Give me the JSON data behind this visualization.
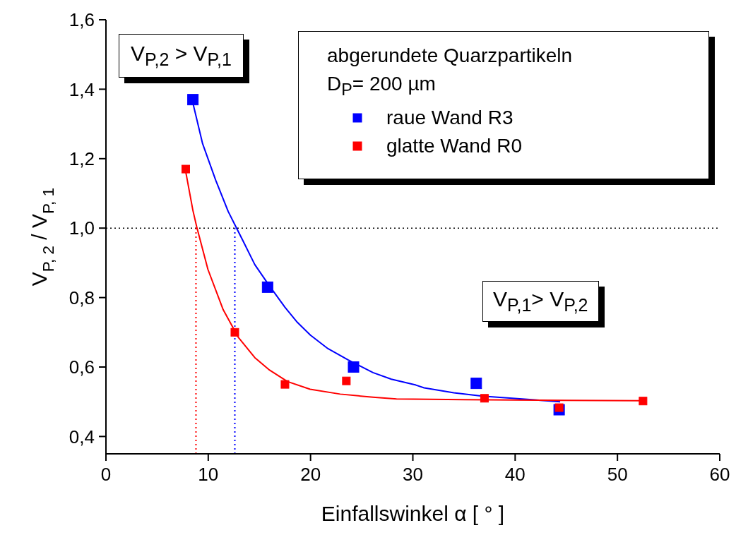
{
  "chart_data": {
    "type": "scatter",
    "xlabel": "Einfallswinkel α [ ° ]",
    "ylabel": "V$_{P, 2}$ / V$_{P, 1}$",
    "legend_title": "abgerundete Quarzpartikeln\nD$_{P}$= 200 µm",
    "legend": "top right",
    "xlim": [
      0,
      60
    ],
    "xticks": [
      0,
      10,
      20,
      30,
      40,
      50,
      60
    ],
    "ylim": [
      0.35,
      1.6
    ],
    "yticks": [
      {
        "value": 0.4,
        "label": "0,4"
      },
      {
        "value": 0.6,
        "label": "0,6"
      },
      {
        "value": 0.8,
        "label": "0,8"
      },
      {
        "value": 1.0,
        "label": "1,0"
      },
      {
        "value": 1.2,
        "label": "1,2"
      },
      {
        "value": 1.4,
        "label": "1,4"
      },
      {
        "value": 1.6,
        "label": "1,6"
      }
    ],
    "annotations": [
      "V$_{P,2}$ > V$_{P,1}$",
      "V$_{P,1}$> V$_{P,2}$"
    ],
    "ref_lines": [
      {
        "axis": "y",
        "value": 1.0,
        "color": "#000000",
        "line_style": "dotted"
      },
      {
        "axis": "x",
        "value": 8.8,
        "color": "#ff0000",
        "line_style": "dotted"
      },
      {
        "axis": "x",
        "value": 12.6,
        "color": "#0000ff",
        "line_style": "dotted"
      }
    ],
    "series": [
      {
        "type": "line",
        "color": "#0000ff",
        "marker": "none",
        "x": [
          8.5,
          9.45,
          10.73,
          11.95,
          12.7,
          13.32,
          14.55,
          15.9,
          17.5,
          18.7,
          19.98,
          21.7,
          23.7,
          26.1,
          27.9,
          30.3,
          31.1,
          34.0,
          36.8,
          44.4
        ],
        "values": [
          1.36,
          1.243,
          1.138,
          1.048,
          1.004,
          0.968,
          0.895,
          0.837,
          0.772,
          0.729,
          0.692,
          0.653,
          0.62,
          0.584,
          0.565,
          0.548,
          0.54,
          0.526,
          0.516,
          0.5
        ]
      },
      {
        "type": "line",
        "color": "#ff0000",
        "marker": "none",
        "x": [
          7.77,
          8.5,
          8.87,
          9.97,
          11.46,
          12.95,
          14.55,
          16.0,
          17.75,
          19.96,
          22.9,
          26.1,
          28.4,
          35.0,
          45.0,
          52.5
        ],
        "values": [
          1.167,
          1.051,
          1.004,
          0.881,
          0.765,
          0.685,
          0.627,
          0.591,
          0.558,
          0.536,
          0.522,
          0.513,
          0.508,
          0.506,
          0.504,
          0.503
        ]
      },
      {
        "name": "raue Wand R3",
        "type": "scatter",
        "color": "#0000ff",
        "marker": "square",
        "x": [
          8.5,
          15.8,
          24.2,
          36.2,
          44.3
        ],
        "values": [
          1.37,
          0.83,
          0.6,
          0.553,
          0.477
        ]
      },
      {
        "name": "glatte Wand R0",
        "type": "scatter",
        "color": "#ff0000",
        "marker": "square",
        "x": [
          7.8,
          12.6,
          17.5,
          23.5,
          37.0,
          44.3,
          52.5
        ],
        "values": [
          1.17,
          0.7,
          0.55,
          0.56,
          0.51,
          0.483,
          0.502
        ]
      }
    ]
  }
}
